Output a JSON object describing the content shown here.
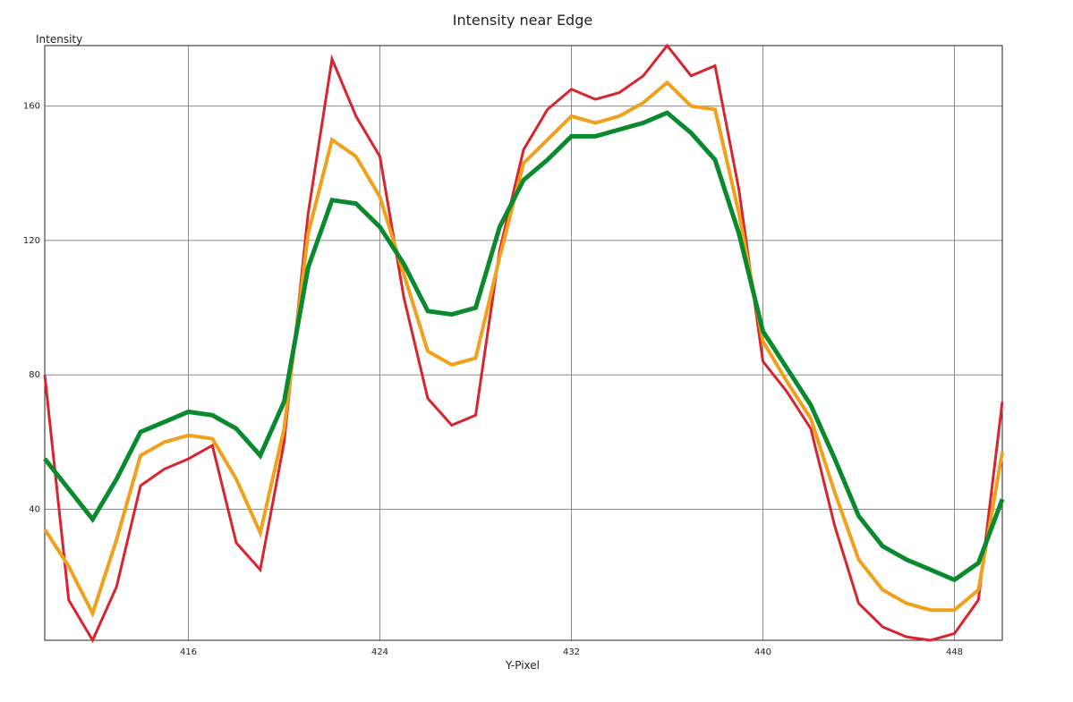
{
  "chart_data": {
    "type": "line",
    "title": "Intensity near Edge",
    "xlabel": "Y-Pixel",
    "ylabel": "Intensity",
    "xlim": [
      410,
      450
    ],
    "ylim": [
      1,
      178
    ],
    "xticks": [
      416,
      424,
      432,
      440,
      448
    ],
    "yticks": [
      40,
      80,
      120,
      160
    ],
    "grid": true,
    "legend": "none",
    "x": [
      410,
      411,
      412,
      413,
      414,
      415,
      416,
      417,
      418,
      419,
      420,
      421,
      422,
      423,
      424,
      425,
      426,
      427,
      428,
      429,
      430,
      431,
      432,
      433,
      434,
      435,
      436,
      437,
      438,
      439,
      440,
      441,
      442,
      443,
      444,
      445,
      446,
      447,
      448,
      449,
      450
    ],
    "series": [
      {
        "color": "#d9232d",
        "values": [
          80,
          13,
          1,
          17,
          47,
          52,
          55,
          59,
          30,
          22,
          60,
          128,
          174,
          157,
          145,
          103,
          73,
          65,
          68,
          117,
          147,
          159,
          165,
          162,
          164,
          169,
          178,
          169,
          172,
          135,
          84,
          75,
          64,
          35,
          12,
          5,
          2,
          1,
          3,
          13,
          72
        ]
      },
      {
        "color": "#f0a01a",
        "values": [
          34,
          23,
          9,
          31,
          56,
          60,
          62,
          61,
          49,
          33,
          64,
          122,
          150,
          145,
          133,
          110,
          87,
          83,
          85,
          115,
          143,
          150,
          157,
          155,
          157,
          161,
          167,
          160,
          159,
          128,
          90,
          78,
          67,
          45,
          25,
          16,
          12,
          10,
          10,
          16,
          57
        ]
      },
      {
        "color": "#0a8a2e",
        "values": [
          55,
          46,
          37,
          49,
          63,
          66,
          69,
          68,
          64,
          56,
          72,
          112,
          132,
          131,
          124,
          113,
          99,
          98,
          100,
          124,
          138,
          144,
          151,
          151,
          153,
          155,
          158,
          152,
          144,
          122,
          93,
          82,
          71,
          55,
          38,
          29,
          25,
          22,
          19,
          24,
          43
        ]
      }
    ]
  }
}
